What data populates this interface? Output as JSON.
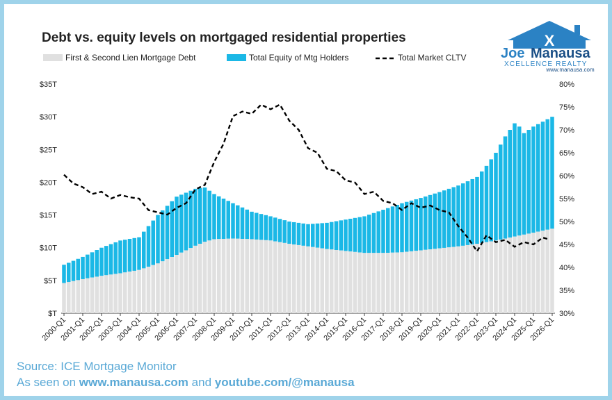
{
  "chart_data": {
    "type": "bar+line",
    "title": "Debt vs. equity levels on mortgaged residential properties",
    "legend": [
      {
        "label": "First & Second Lien Mortgage Debt",
        "color": "#e0e0e0",
        "kind": "bar"
      },
      {
        "label": "Total Equity of Mtg Holders",
        "color": "#1bb8e6",
        "kind": "bar"
      },
      {
        "label": "Total Market CLTV",
        "color": "#000000",
        "kind": "dashed-line"
      }
    ],
    "legend_placement": "top",
    "left_axis": {
      "min": 0,
      "max": 35,
      "ticks": [
        "$T",
        "$5T",
        "$10T",
        "$15T",
        "$20T",
        "$25T",
        "$30T",
        "$35T"
      ]
    },
    "right_axis": {
      "min": 30,
      "max": 80,
      "ticks": [
        "30%",
        "35%",
        "40%",
        "45%",
        "50%",
        "55%",
        "60%",
        "65%",
        "70%",
        "75%",
        "80%"
      ]
    },
    "x_labels": [
      "2000-Q1",
      "2001-Q1",
      "2002-Q1",
      "2003-Q1",
      "2004-Q1",
      "2005-Q1",
      "2006-Q1",
      "2007-Q1",
      "2008-Q1",
      "2009-Q1",
      "2010-Q1",
      "2011-Q1",
      "2012-Q1",
      "2013-Q1",
      "2014-Q1",
      "2015-Q1",
      "2016-Q1",
      "2017-Q1",
      "2018-Q1",
      "2019-Q1",
      "2020-Q1",
      "2021-Q1",
      "2022-Q1",
      "2023-Q1",
      "2024-Q1",
      "2025-Q1",
      "2026-Q1"
    ],
    "debt_trillions": [
      [
        0,
        4.6
      ],
      [
        4,
        5.2
      ],
      [
        8,
        5.7
      ],
      [
        12,
        6.1
      ],
      [
        16,
        6.6
      ],
      [
        20,
        7.6
      ],
      [
        24,
        8.9
      ],
      [
        28,
        10.3
      ],
      [
        30,
        10.9
      ],
      [
        32,
        11.3
      ],
      [
        36,
        11.4
      ],
      [
        40,
        11.3
      ],
      [
        44,
        11.1
      ],
      [
        48,
        10.6
      ],
      [
        52,
        10.2
      ],
      [
        56,
        9.8
      ],
      [
        60,
        9.5
      ],
      [
        64,
        9.2
      ],
      [
        68,
        9.2
      ],
      [
        72,
        9.3
      ],
      [
        76,
        9.6
      ],
      [
        80,
        9.9
      ],
      [
        84,
        10.2
      ],
      [
        88,
        10.6
      ],
      [
        92,
        11.1
      ],
      [
        96,
        11.7
      ],
      [
        100,
        12.3
      ],
      [
        104,
        12.9
      ],
      [
        108,
        13.5
      ],
      [
        112,
        14.0
      ],
      [
        116,
        14.6
      ],
      [
        120,
        14.8
      ],
      [
        122,
        14.7
      ]
    ],
    "total_trillions": [
      [
        0,
        7.4
      ],
      [
        4,
        8.6
      ],
      [
        8,
        10.0
      ],
      [
        12,
        11.1
      ],
      [
        16,
        11.6
      ],
      [
        20,
        15.0
      ],
      [
        24,
        17.8
      ],
      [
        28,
        19.0
      ],
      [
        30,
        19.2
      ],
      [
        32,
        18.2
      ],
      [
        36,
        16.8
      ],
      [
        40,
        15.5
      ],
      [
        44,
        14.8
      ],
      [
        48,
        14.0
      ],
      [
        52,
        13.6
      ],
      [
        56,
        13.8
      ],
      [
        60,
        14.3
      ],
      [
        64,
        14.8
      ],
      [
        68,
        15.8
      ],
      [
        72,
        16.8
      ],
      [
        76,
        17.6
      ],
      [
        80,
        18.5
      ],
      [
        84,
        19.5
      ],
      [
        88,
        20.8
      ],
      [
        90,
        22.5
      ],
      [
        92,
        24.5
      ],
      [
        94,
        27.0
      ],
      [
        96,
        29.0
      ],
      [
        97,
        28.5
      ],
      [
        98,
        27.5
      ],
      [
        100,
        28.5
      ],
      [
        104,
        30.0
      ],
      [
        108,
        31.2
      ],
      [
        112,
        32.0
      ],
      [
        114,
        32.3
      ],
      [
        116,
        32.0
      ],
      [
        118,
        31.8
      ],
      [
        120,
        32.2
      ],
      [
        122,
        32.4
      ]
    ],
    "cltv_percent": [
      [
        0,
        60.2
      ],
      [
        2,
        58.3
      ],
      [
        4,
        57.5
      ],
      [
        6,
        56.0
      ],
      [
        8,
        56.5
      ],
      [
        10,
        55.0
      ],
      [
        12,
        55.8
      ],
      [
        14,
        55.3
      ],
      [
        16,
        55.0
      ],
      [
        18,
        52.5
      ],
      [
        20,
        52.0
      ],
      [
        22,
        51.5
      ],
      [
        24,
        53.0
      ],
      [
        26,
        54.0
      ],
      [
        28,
        57.0
      ],
      [
        30,
        58.0
      ],
      [
        32,
        63.0
      ],
      [
        34,
        67.0
      ],
      [
        36,
        73.0
      ],
      [
        38,
        74.0
      ],
      [
        40,
        73.5
      ],
      [
        42,
        75.5
      ],
      [
        43,
        75.0
      ],
      [
        44,
        74.5
      ],
      [
        46,
        75.5
      ],
      [
        48,
        72.0
      ],
      [
        50,
        70.0
      ],
      [
        52,
        66.0
      ],
      [
        54,
        65.0
      ],
      [
        56,
        61.5
      ],
      [
        58,
        61.0
      ],
      [
        60,
        59.0
      ],
      [
        62,
        58.5
      ],
      [
        64,
        56.0
      ],
      [
        66,
        56.5
      ],
      [
        68,
        54.5
      ],
      [
        70,
        54.0
      ],
      [
        72,
        52.5
      ],
      [
        74,
        54.0
      ],
      [
        76,
        53.0
      ],
      [
        78,
        53.5
      ],
      [
        80,
        52.5
      ],
      [
        82,
        52.0
      ],
      [
        84,
        49.0
      ],
      [
        86,
        46.5
      ],
      [
        88,
        43.5
      ],
      [
        90,
        47.0
      ],
      [
        92,
        45.5
      ],
      [
        94,
        46.0
      ],
      [
        96,
        44.5
      ],
      [
        98,
        45.5
      ],
      [
        100,
        45.0
      ],
      [
        102,
        46.5
      ],
      [
        103,
        46.2
      ]
    ]
  },
  "logo": {
    "brand_top": "Joe",
    "brand_main": "Manausa",
    "tagline": "XCELLENCE REALTY",
    "url": "www.manausa.com"
  },
  "footer": {
    "source": "Source: ICE Mortgage Monitor",
    "seen_prefix": "As seen on ",
    "site": "www.manausa.com",
    "and": " and ",
    "youtube": "youtube.com/@manausa"
  }
}
